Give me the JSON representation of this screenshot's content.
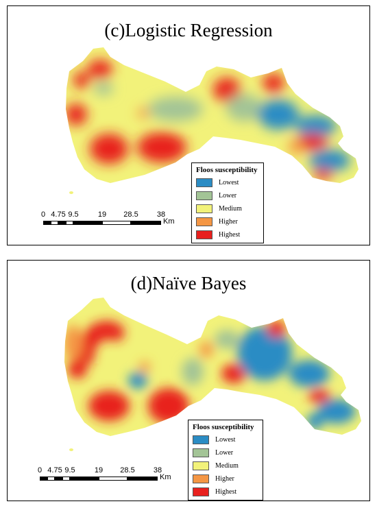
{
  "panels": [
    {
      "title": "(c)Logistic Regression",
      "legend": {
        "title": "Floos susceptibility",
        "items": [
          {
            "label": "Lowest",
            "color": "#2b8cc4"
          },
          {
            "label": "Lower",
            "color": "#a3c496"
          },
          {
            "label": "Medium",
            "color": "#f2f27a"
          },
          {
            "label": "Higher",
            "color": "#f49644"
          },
          {
            "label": "Highest",
            "color": "#e8201e"
          }
        ]
      },
      "scale": {
        "ticks": [
          "0",
          "4.75",
          "9.5",
          "19",
          "28.5",
          "38"
        ],
        "unit": "Km"
      }
    },
    {
      "title": "(d)Naïve Bayes",
      "legend": {
        "title": "Floos susceptibility",
        "items": [
          {
            "label": "Lowest",
            "color": "#2b8cc4"
          },
          {
            "label": "Lower",
            "color": "#a3c496"
          },
          {
            "label": "Medium",
            "color": "#f2f27a"
          },
          {
            "label": "Higher",
            "color": "#f49644"
          },
          {
            "label": "Highest",
            "color": "#e8201e"
          }
        ]
      },
      "scale": {
        "ticks": [
          "0",
          "4.75",
          "9.5",
          "19",
          "28.5",
          "38"
        ],
        "unit": "Km"
      }
    }
  ]
}
